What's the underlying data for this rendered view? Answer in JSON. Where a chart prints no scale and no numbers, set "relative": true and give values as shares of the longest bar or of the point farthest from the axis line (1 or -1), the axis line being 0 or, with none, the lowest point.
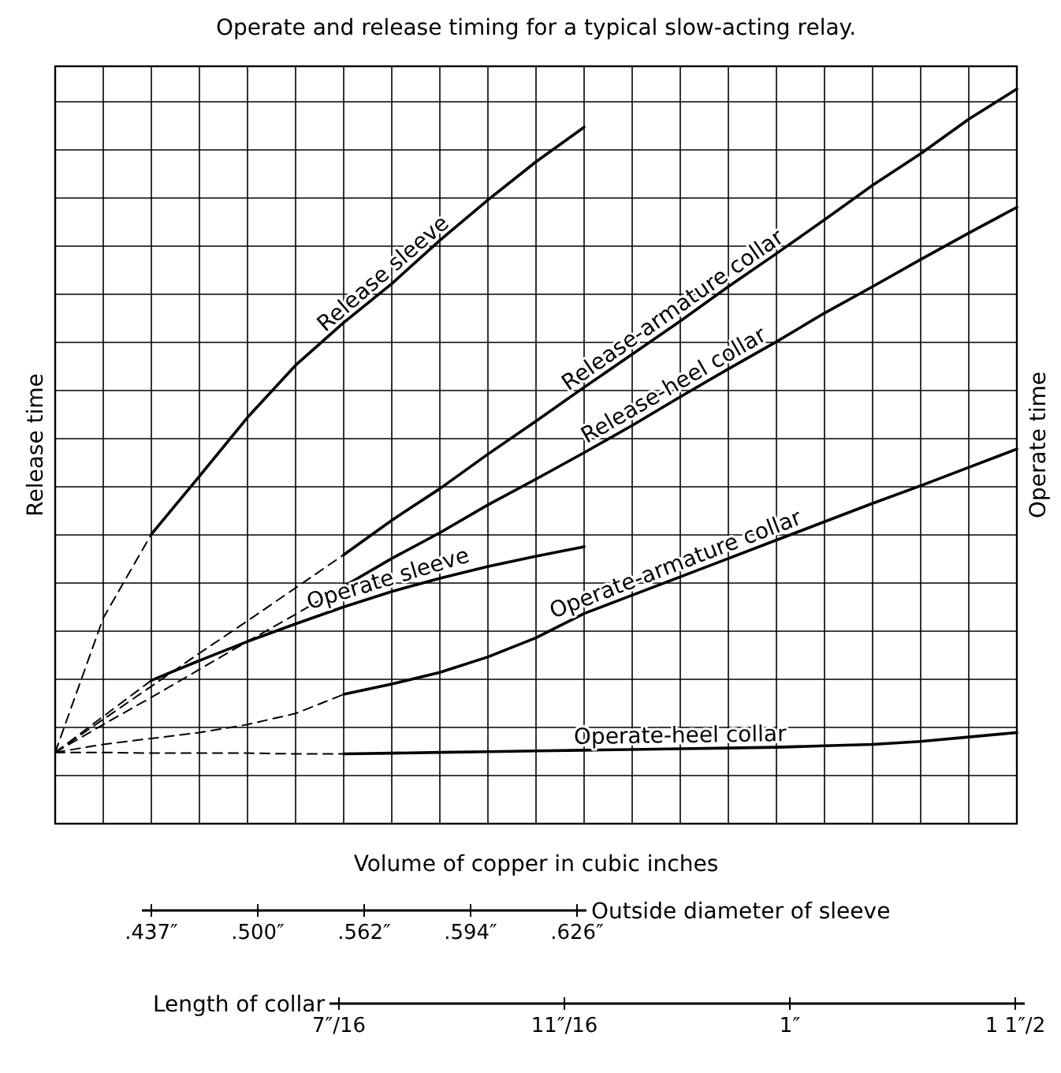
{
  "chart_data": [
    {
      "type": "line",
      "title": "Operate and release timing for a typical slow-acting relay.",
      "xlabel": "Volume of copper in cubic inches",
      "ylabel": "Release time",
      "y2label": "Operate time",
      "relative": true,
      "grid": true,
      "categories": [
        null,
        null,
        null,
        null,
        null,
        null,
        null,
        null,
        null,
        null,
        null,
        null,
        null,
        null,
        null,
        null,
        null,
        null,
        null,
        null,
        null
      ],
      "series": [
        {
          "name": "Release sleeve",
          "color": "#000000",
          "values": [
            null,
            null,
            0.394,
            0.473,
            0.553,
            0.624,
            0.682,
            0.735,
            0.794,
            0.849,
            0.901,
            0.948,
            null,
            null,
            null,
            null,
            null,
            null,
            null,
            null,
            null
          ]
        },
        {
          "color": "#000000",
          "line_style": "dashed",
          "values": [
            0.097,
            0.28,
            0.394,
            null,
            null,
            null,
            null,
            null,
            null,
            null,
            null,
            null,
            null,
            null,
            null,
            null,
            null,
            null,
            null,
            null,
            null
          ]
        },
        {
          "name": "Release-armature collar",
          "color": "#000000",
          "values": [
            null,
            null,
            null,
            null,
            null,
            null,
            0.366,
            0.413,
            0.456,
            0.503,
            0.548,
            0.594,
            0.639,
            0.684,
            0.731,
            0.776,
            0.822,
            0.869,
            0.912,
            0.959,
            1.0
          ]
        },
        {
          "color": "#000000",
          "line_style": "dashed",
          "values": [
            0.097,
            0.142,
            0.187,
            0.232,
            0.276,
            0.321,
            0.366,
            null,
            null,
            null,
            null,
            null,
            null,
            null,
            null,
            null,
            null,
            null,
            null,
            null,
            null
          ]
        },
        {
          "name": "Release-heel collar",
          "color": "#000000",
          "values": [
            null,
            null,
            null,
            null,
            null,
            null,
            0.323,
            0.361,
            0.396,
            0.434,
            0.469,
            0.505,
            0.542,
            0.581,
            0.619,
            0.656,
            0.695,
            0.731,
            0.768,
            0.804,
            0.839
          ]
        },
        {
          "color": "#000000",
          "line_style": "dashed",
          "values": [
            0.097,
            0.135,
            0.172,
            0.21,
            0.248,
            0.285,
            0.323,
            null,
            null,
            null,
            null,
            null,
            null,
            null,
            null,
            null,
            null,
            null,
            null,
            null,
            null
          ]
        },
        {
          "name": "Operate sleeve",
          "color": "#000000",
          "values": [
            null,
            null,
            0.195,
            0.222,
            0.248,
            0.272,
            0.295,
            0.316,
            0.334,
            0.35,
            0.364,
            0.377,
            null,
            null,
            null,
            null,
            null,
            null,
            null,
            null,
            null
          ]
        },
        {
          "color": "#000000",
          "line_style": "dashed",
          "values": [
            0.097,
            0.146,
            0.195,
            null,
            null,
            null,
            null,
            null,
            null,
            null,
            null,
            null,
            null,
            null,
            null,
            null,
            null,
            null,
            null,
            null,
            null
          ]
        },
        {
          "name": "Operate-armature collar",
          "color": "#000000",
          "values": [
            null,
            null,
            null,
            null,
            null,
            null,
            0.176,
            0.19,
            0.206,
            0.227,
            0.253,
            0.286,
            0.311,
            0.336,
            0.361,
            0.386,
            0.411,
            0.436,
            0.46,
            0.485,
            0.51
          ]
        },
        {
          "color": "#000000",
          "line_style": "dashed",
          "values": [
            0.097,
            0.108,
            0.116,
            0.124,
            0.135,
            0.15,
            0.176,
            null,
            null,
            null,
            null,
            null,
            null,
            null,
            null,
            null,
            null,
            null,
            null,
            null,
            null
          ]
        },
        {
          "name": "Operate-heel collar",
          "color": "#000000",
          "values": [
            null,
            null,
            null,
            null,
            null,
            null,
            0.095,
            0.096,
            0.097,
            0.098,
            0.099,
            0.1,
            0.101,
            0.102,
            0.103,
            0.104,
            0.106,
            0.108,
            0.112,
            0.118,
            0.124
          ]
        },
        {
          "color": "#000000",
          "line_style": "dashed",
          "values": [
            0.097,
            0.097,
            0.096,
            0.096,
            0.096,
            0.095,
            0.095,
            null,
            null,
            null,
            null,
            null,
            null,
            null,
            null,
            null,
            null,
            null,
            null,
            null,
            null
          ]
        }
      ]
    },
    {
      "type": "other",
      "xlabel": "Outside diameter of sleeve",
      "categories": [
        ".437″",
        ".500″",
        ".562″",
        ".594″",
        ".626″"
      ]
    },
    {
      "type": "other",
      "xlabel": "Length of collar",
      "categories": [
        "7″/16",
        "11″/16",
        "1″",
        "1 1″/2"
      ]
    }
  ]
}
